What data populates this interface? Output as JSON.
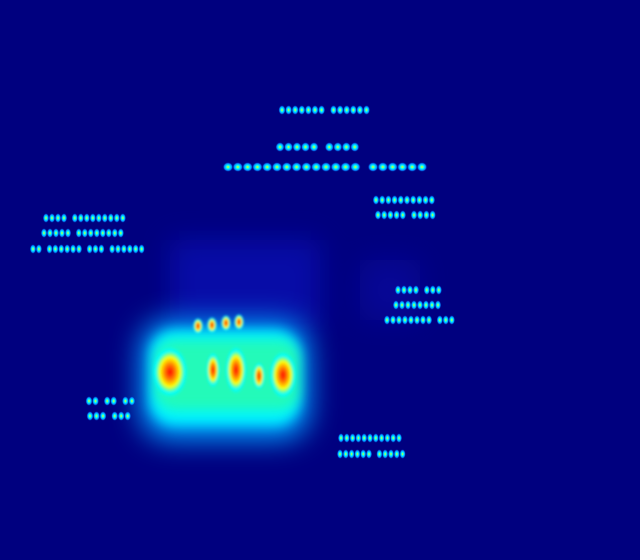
{
  "image": {
    "kind": "attention-heatmap",
    "colormap": "jet",
    "background_color": "#00007f",
    "colors": {
      "low": "#00007f",
      "blue": "#0000ff",
      "cyan": "#00ffff",
      "yellow": "#ffff00",
      "red": "#ff0000",
      "dark_red": "#7f0000"
    }
  }
}
